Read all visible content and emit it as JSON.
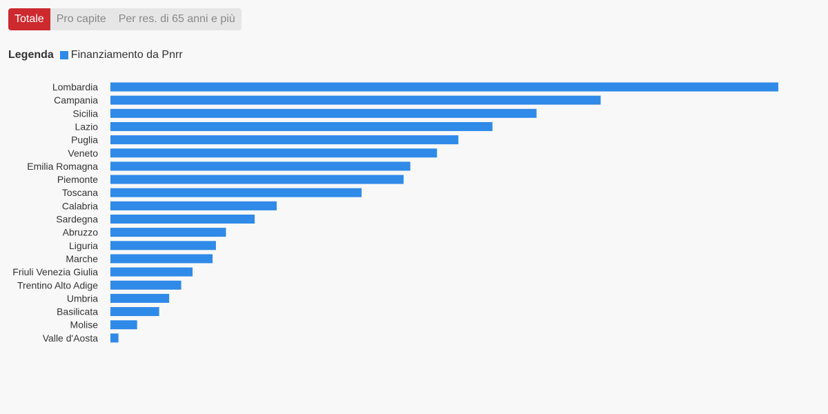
{
  "tabs": [
    {
      "label": "Totale",
      "active": true
    },
    {
      "label": "Pro capite",
      "active": false
    },
    {
      "label": "Per res. di 65 anni e più",
      "active": false
    }
  ],
  "legend": {
    "title": "Legenda",
    "label": "Finanziamento da Pnrr"
  },
  "colors": {
    "bar": "#2f8ae8",
    "active_tab": "#cc2a2f"
  },
  "chart_data": {
    "type": "bar",
    "orientation": "horizontal",
    "categories": [
      "Lombardia",
      "Campania",
      "Sicilia",
      "Lazio",
      "Puglia",
      "Veneto",
      "Emilia Romagna",
      "Piemonte",
      "Toscana",
      "Calabria",
      "Sardegna",
      "Abruzzo",
      "Liguria",
      "Marche",
      "Friuli Venezia Giulia",
      "Trentino Alto Adige",
      "Umbria",
      "Basilicata",
      "Molise",
      "Valle d'Aosta"
    ],
    "series": [
      {
        "name": "Finanziamento da Pnrr",
        "values": [
          100,
          73.4,
          63.8,
          57.2,
          52.1,
          48.9,
          44.9,
          43.9,
          37.6,
          24.9,
          21.6,
          17.3,
          15.8,
          15.3,
          12.3,
          10.6,
          8.8,
          7.3,
          4.0,
          1.2
        ]
      }
    ],
    "xlim": [
      0,
      100
    ],
    "grid": false,
    "legend_position": "top-left"
  }
}
